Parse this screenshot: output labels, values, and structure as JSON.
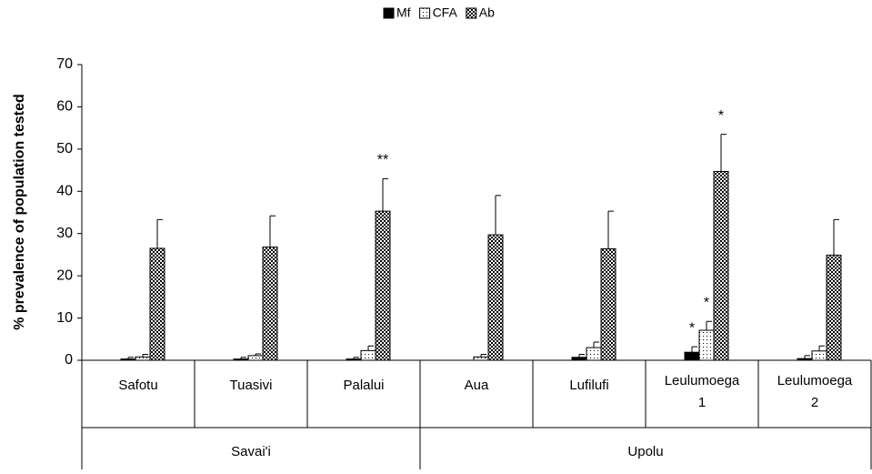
{
  "chart_data": {
    "type": "bar",
    "y_label": "% prevalence of population tested",
    "categories": [
      "Safotu",
      "Tuasivi",
      "Palalui",
      "Aua",
      "Lufilufi",
      "Leulumoega 1",
      "Leulumoega 2"
    ],
    "groups": [
      {
        "name": "Savai'i",
        "categories": [
          "Safotu",
          "Tuasivi",
          "Palalui"
        ]
      },
      {
        "name": "Upolu",
        "categories": [
          "Aua",
          "Lufilufi",
          "Leulumoega 1",
          "Leulumoega 2"
        ]
      }
    ],
    "series": [
      {
        "name": "Mf",
        "color": "#000000",
        "pattern": "solid",
        "values": [
          0.3,
          0.3,
          0.3,
          0,
          0.7,
          1.9,
          0.4
        ],
        "errors": [
          0.4,
          0.4,
          0.4,
          0,
          0.7,
          1.3,
          0.7
        ],
        "annotations": [
          null,
          null,
          null,
          null,
          null,
          "*",
          null
        ]
      },
      {
        "name": "CFA",
        "color": "#000000",
        "pattern": "dots",
        "values": [
          0.8,
          1.1,
          2.3,
          0.8,
          3.0,
          7.1,
          2.2
        ],
        "errors": [
          0.6,
          0.4,
          1.1,
          0.6,
          1.3,
          2.1,
          1.2
        ],
        "annotations": [
          null,
          null,
          null,
          null,
          null,
          "*",
          null
        ]
      },
      {
        "name": "Ab",
        "color": "#000000",
        "pattern": "checker",
        "values": [
          26.5,
          26.8,
          35.3,
          29.7,
          26.4,
          44.7,
          24.9
        ],
        "errors": [
          6.8,
          7.4,
          7.7,
          9.3,
          8.9,
          8.8,
          8.4
        ],
        "annotations": [
          null,
          null,
          "**",
          null,
          null,
          "*",
          null
        ]
      }
    ],
    "ylim": [
      0,
      70
    ],
    "yticks": [
      0,
      10,
      20,
      30,
      40,
      50,
      60,
      70
    ],
    "grid": false
  }
}
